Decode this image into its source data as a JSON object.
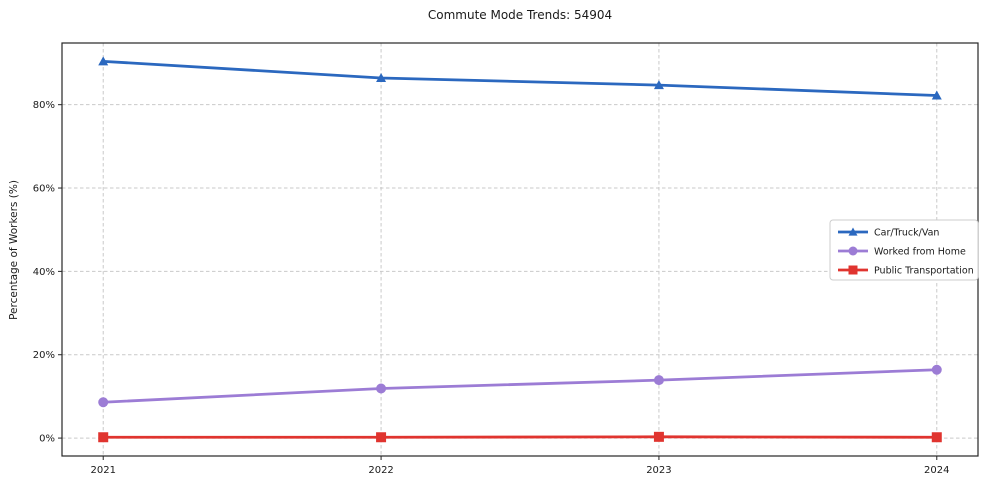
{
  "chart_data": {
    "type": "line",
    "title": "Commute Mode Trends: 54904",
    "xlabel": "",
    "ylabel": "Percentage of Workers (%)",
    "x": [
      "2021",
      "2022",
      "2023",
      "2024"
    ],
    "series": [
      {
        "name": "Car/Truck/Van",
        "marker": "triangle",
        "color": "#2b68bf",
        "values": [
          90.4,
          86.4,
          84.7,
          82.2
        ]
      },
      {
        "name": "Worked from Home",
        "marker": "circle",
        "color": "#9c7cd5",
        "values": [
          8.6,
          11.9,
          13.9,
          16.4
        ]
      },
      {
        "name": "Public Transportation",
        "marker": "square",
        "color": "#e0342f",
        "values": [
          0.2,
          0.2,
          0.3,
          0.2
        ]
      }
    ],
    "ylim": [
      -4.3,
      94.8
    ],
    "yticks": [
      0,
      20,
      40,
      60,
      80
    ],
    "ytick_suffix": "%",
    "grid": true,
    "legend": {
      "position": "right-center",
      "entries": [
        "Car/Truck/Van",
        "Worked from Home",
        "Public Transportation"
      ]
    }
  }
}
